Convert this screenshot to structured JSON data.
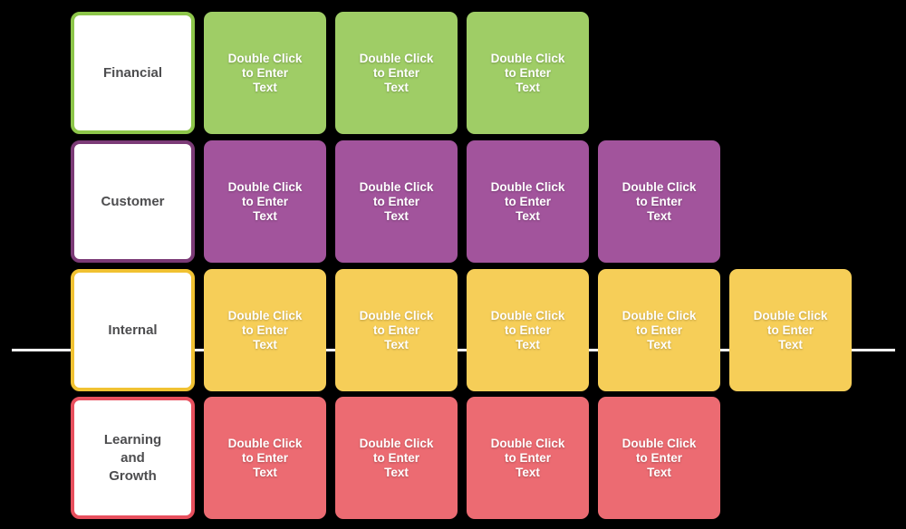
{
  "canvas": {
    "background_color": "#000000",
    "timeline_color": "#ffffff"
  },
  "card_placeholder": "Double Click\nto Enter\nText",
  "rows": [
    {
      "name": "Financial",
      "label": "Financial",
      "card_color": "#9fcd66",
      "border_color": "#8dc64a",
      "card_count": 3
    },
    {
      "name": "Customer",
      "label": "Customer",
      "card_color": "#a2549c",
      "border_color": "#7c3b77",
      "card_count": 4
    },
    {
      "name": "Internal",
      "label": "Internal",
      "card_color": "#f6ce58",
      "border_color": "#f1c232",
      "card_count": 5
    },
    {
      "name": "Learning and Growth",
      "label": "Learning\nand\nGrowth",
      "card_color": "#ec6b72",
      "border_color": "#e8505e",
      "card_count": 4
    }
  ]
}
